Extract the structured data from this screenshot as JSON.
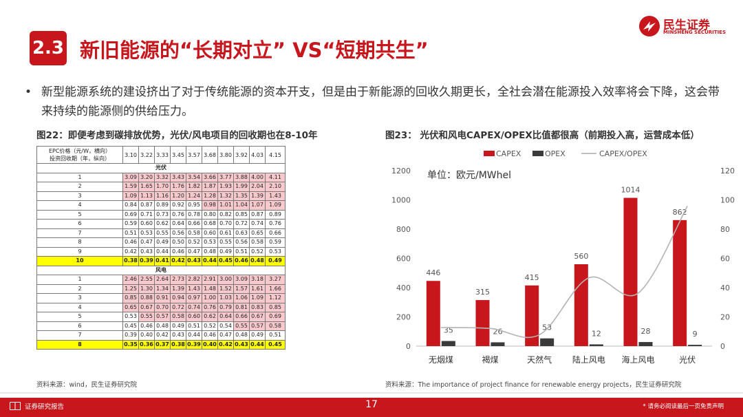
{
  "header": {
    "section_no": "2.3",
    "title": "新旧能源的“长期对立” VS“短期共生”",
    "logo_cn": "民生证券",
    "logo_en": "MINSHENG SECURITIES"
  },
  "bullet": {
    "marker": "•",
    "text": "新型能源系统的建设挤出了对于传统能源的资本开支，但是由于新能源的回收久期更长，全社会潜在能源投入效率将会下降，这会带来持续的能源侧的供给压力。"
  },
  "figure22": {
    "title": "图22：即便考虑到碳排放优势，光伏/风电项目的回收期也在8-10年",
    "header_label_1": "EPC价格（元/W，横向）",
    "header_label_2": "投资回收期（年，纵向）",
    "epc_prices": [
      "3.10",
      "3.22",
      "3.33",
      "3.45",
      "3.57",
      "3.68",
      "3.80",
      "3.92",
      "4.03",
      "4.15"
    ],
    "sections": [
      {
        "name": "光伏",
        "rows": [
          {
            "label": "1",
            "values": [
              "3.09",
              "3.20",
              "3.32",
              "3.43",
              "3.54",
              "3.66",
              "3.77",
              "3.88",
              "4.00",
              "4.11"
            ],
            "pink_from": 0,
            "highlight": false
          },
          {
            "label": "2",
            "values": [
              "1.59",
              "1.65",
              "1.70",
              "1.76",
              "1.82",
              "1.87",
              "1.93",
              "1.99",
              "2.04",
              "2.10"
            ],
            "pink_from": 0,
            "highlight": false
          },
          {
            "label": "3",
            "values": [
              "1.09",
              "1.13",
              "1.16",
              "1.20",
              "1.24",
              "1.28",
              "1.32",
              "1.35",
              "1.39",
              "1.43"
            ],
            "pink_from": 0,
            "highlight": false
          },
          {
            "label": "4",
            "values": [
              "0.84",
              "0.87",
              "0.89",
              "0.92",
              "0.95",
              "0.98",
              "1.01",
              "1.04",
              "1.07",
              "1.09"
            ],
            "pink_from": 5,
            "highlight": false
          },
          {
            "label": "5",
            "values": [
              "0.69",
              "0.71",
              "0.73",
              "0.76",
              "0.78",
              "0.80",
              "0.82",
              "0.85",
              "0.87",
              "0.89"
            ],
            "pink_from": 10,
            "highlight": false
          },
          {
            "label": "6",
            "values": [
              "0.59",
              "0.60",
              "0.62",
              "0.64",
              "0.66",
              "0.68",
              "0.70",
              "0.72",
              "0.74",
              "0.76"
            ],
            "pink_from": 10,
            "highlight": false
          },
          {
            "label": "7",
            "values": [
              "0.51",
              "0.53",
              "0.55",
              "0.56",
              "0.58",
              "0.60",
              "0.61",
              "0.63",
              "0.65",
              "0.66"
            ],
            "pink_from": 10,
            "highlight": false
          },
          {
            "label": "8",
            "values": [
              "0.46",
              "0.47",
              "0.49",
              "0.50",
              "0.52",
              "0.53",
              "0.55",
              "0.56",
              "0.58",
              "0.59"
            ],
            "pink_from": 10,
            "highlight": false
          },
          {
            "label": "9",
            "values": [
              "0.42",
              "0.43",
              "0.44",
              "0.46",
              "0.47",
              "0.48",
              "0.49",
              "0.51",
              "0.52",
              "0.53"
            ],
            "pink_from": 10,
            "highlight": false
          },
          {
            "label": "10",
            "values": [
              "0.38",
              "0.39",
              "0.41",
              "0.42",
              "0.43",
              "0.44",
              "0.45",
              "0.46",
              "0.48",
              "0.49"
            ],
            "pink_from": 10,
            "highlight": true
          }
        ]
      },
      {
        "name": "风电",
        "rows": [
          {
            "label": "1",
            "values": [
              "2.46",
              "2.55",
              "2.64",
              "2.73",
              "2.82",
              "2.91",
              "3.00",
              "3.09",
              "3.18",
              "3.27"
            ],
            "pink_from": 0,
            "highlight": false
          },
          {
            "label": "2",
            "values": [
              "1.25",
              "1.30",
              "1.34",
              "1.39",
              "1.43",
              "1.48",
              "1.52",
              "1.57",
              "1.61",
              "1.66"
            ],
            "pink_from": 0,
            "highlight": false
          },
          {
            "label": "3",
            "values": [
              "0.85",
              "0.88",
              "0.91",
              "0.94",
              "0.97",
              "1.00",
              "1.03",
              "1.06",
              "1.09",
              "1.12"
            ],
            "pink_from": 0,
            "highlight": false
          },
          {
            "label": "4",
            "values": [
              "0.65",
              "0.67",
              "0.70",
              "0.72",
              "0.74",
              "0.76",
              "0.79",
              "0.81",
              "0.83",
              "0.85"
            ],
            "pink_from": 0,
            "highlight": false
          },
          {
            "label": "5",
            "values": [
              "0.53",
              "0.55",
              "0.57",
              "0.58",
              "0.60",
              "0.62",
              "0.64",
              "0.66",
              "0.67",
              "0.69"
            ],
            "pink_from": 1,
            "highlight": false
          },
          {
            "label": "6",
            "values": [
              "0.45",
              "0.46",
              "0.48",
              "0.49",
              "0.51",
              "0.52",
              "0.54",
              "0.55",
              "0.57",
              "0.58"
            ],
            "pink_from": 7,
            "highlight": false
          },
          {
            "label": "7",
            "values": [
              "0.39",
              "0.40",
              "0.42",
              "0.43",
              "0.44",
              "0.46",
              "0.47",
              "0.48",
              "0.49",
              "0.51"
            ],
            "pink_from": 10,
            "highlight": false
          },
          {
            "label": "8",
            "values": [
              "0.35",
              "0.36",
              "0.37",
              "0.38",
              "0.39",
              "0.40",
              "0.42",
              "0.43",
              "0.44",
              "0.45"
            ],
            "pink_from": 10,
            "highlight": true
          }
        ]
      }
    ],
    "source": "资料来源：wind，民生证券研究院"
  },
  "figure23": {
    "title": "图23： 光伏和风电CAPEX/OPEX比值都很高（前期投入高，运营成本低）",
    "source": "资料来源：The importance of project finance for renewable energy projects，民生证券研究院"
  },
  "chart_data": {
    "type": "bar",
    "categories": [
      "无烟煤",
      "褐煤",
      "天然气",
      "陆上风电",
      "海上风电",
      "光伏"
    ],
    "series": [
      {
        "name": "CAPEX",
        "kind": "bar",
        "axis": "left",
        "color": "#c8161d",
        "values": [
          446,
          315,
          415,
          560,
          1014,
          862
        ]
      },
      {
        "name": "OPEX",
        "kind": "bar",
        "axis": "left",
        "color": "#3a3a3a",
        "values": [
          35,
          26,
          53,
          12,
          28,
          9
        ]
      },
      {
        "name": "CAPEX/OPEX",
        "kind": "line",
        "axis": "right",
        "color": "#b3b3b3",
        "values": [
          12.7,
          12.1,
          7.8,
          46.7,
          36.2,
          95.8
        ]
      }
    ],
    "annotation": "单位：欧元/MWhel",
    "ylim_left": [
      0,
      1200
    ],
    "yticks_left": [
      "0",
      "200",
      "400",
      "600",
      "800",
      "1000",
      "1200"
    ],
    "ylim_right": [
      0,
      120
    ],
    "yticks_right": [
      "0",
      "20",
      "40",
      "60",
      "80",
      "100",
      "120"
    ],
    "legend_position": "top",
    "grid": false
  },
  "footer": {
    "left_label": "证券研究报告",
    "page": "17",
    "disclaimer": "* 请务必阅读最后一页免责声明"
  }
}
